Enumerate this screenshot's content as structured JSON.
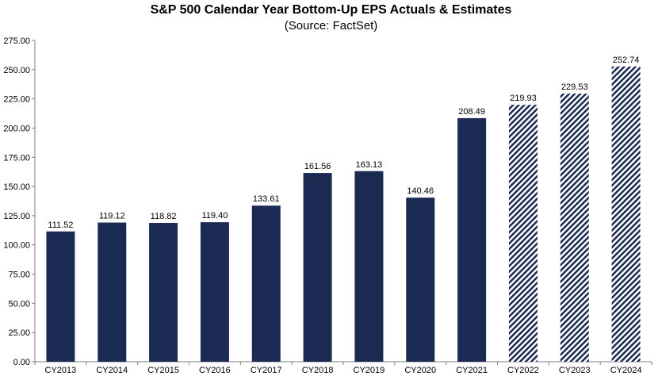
{
  "chart_data": {
    "type": "bar",
    "title": "S&P 500 Calendar Year Bottom-Up EPS Actuals & Estimates",
    "subtitle": "(Source: FactSet)",
    "categories": [
      "CY2013",
      "CY2014",
      "CY2015",
      "CY2016",
      "CY2017",
      "CY2018",
      "CY2019",
      "CY2020",
      "CY2021",
      "CY2022",
      "CY2023",
      "CY2024"
    ],
    "values": [
      111.52,
      119.12,
      118.82,
      119.4,
      133.61,
      161.56,
      163.13,
      140.46,
      208.49,
      219.93,
      229.53,
      252.74
    ],
    "value_labels": [
      "111.52",
      "119.12",
      "118.82",
      "119.40",
      "133.61",
      "161.56",
      "163.13",
      "140.46",
      "208.49",
      "219.93",
      "229.53",
      "252.74"
    ],
    "estimate_flags": [
      false,
      false,
      false,
      false,
      false,
      false,
      false,
      false,
      false,
      true,
      true,
      true
    ],
    "ylim": [
      0,
      275
    ],
    "yticks": [
      "0.00",
      "25.00",
      "50.00",
      "75.00",
      "100.00",
      "125.00",
      "150.00",
      "175.00",
      "200.00",
      "225.00",
      "250.00",
      "275.00"
    ],
    "xlabel": "",
    "ylabel": "",
    "grid": false,
    "colors": {
      "actual": "#1b2a52",
      "estimate": "#1b2a52",
      "axis": "#7f7f7f"
    }
  }
}
